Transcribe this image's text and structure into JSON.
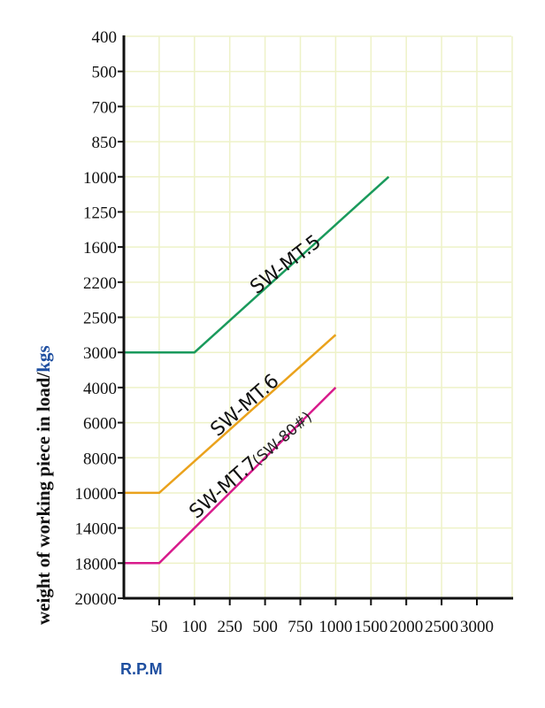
{
  "chart_data": {
    "type": "line",
    "title": "",
    "xlabel": "R.P.M",
    "ylabel": "weight of working piece in load/",
    "ylabel_unit": "kgs",
    "x_ticks": [
      "50",
      "100",
      "250",
      "500",
      "750",
      "1000",
      "1500",
      "2000",
      "2500",
      "3000"
    ],
    "y_ticks": [
      "400",
      "500",
      "700",
      "850",
      "1000",
      "1250",
      "1600",
      "2200",
      "2500",
      "3000",
      "4000",
      "6000",
      "8000",
      "10000",
      "14000",
      "18000",
      "20000"
    ],
    "y_axis_inverted": true,
    "grid": true,
    "series": [
      {
        "name": "SW-MT.5",
        "color": "#1a9a5c",
        "points": [
          {
            "rpm": 0,
            "kgs": 3000
          },
          {
            "rpm": 100,
            "kgs": 3000
          },
          {
            "rpm": 1750,
            "kgs": 1000
          }
        ]
      },
      {
        "name": "SW-MT.6",
        "color": "#eaa21c",
        "points": [
          {
            "rpm": 0,
            "kgs": 10000
          },
          {
            "rpm": 50,
            "kgs": 10000
          },
          {
            "rpm": 1000,
            "kgs": 2750
          }
        ]
      },
      {
        "name": "SW-MT.7",
        "sublabel": "(SW-80#)",
        "color": "#d81b8c",
        "points": [
          {
            "rpm": 0,
            "kgs": 18000
          },
          {
            "rpm": 50,
            "kgs": 18000
          },
          {
            "rpm": 1000,
            "kgs": 4000
          }
        ]
      }
    ]
  },
  "labels": {
    "xlabel": "R.P.M",
    "ylabel": "weight of working piece in load/",
    "ylabel_unit": "kgs",
    "series": {
      "mt5": "SW-MT.5",
      "mt6": "SW-MT.6",
      "mt7": "SW-MT.7",
      "mt7_sub": "(SW-80#)"
    }
  }
}
